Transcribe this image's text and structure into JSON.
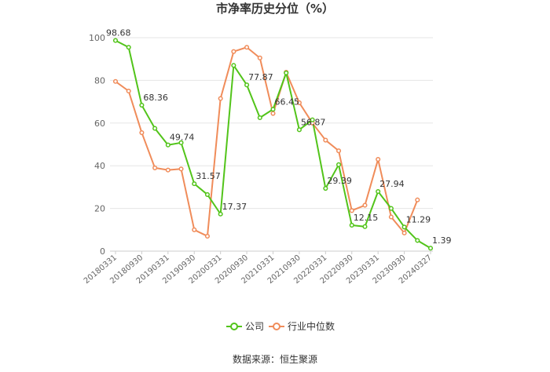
{
  "chart_data": {
    "type": "line",
    "title": "市净率历史分位（%）",
    "ylim": [
      0,
      100
    ],
    "yticks": [
      0,
      20,
      40,
      60,
      80,
      100
    ],
    "grid": true,
    "legend_position": "bottom",
    "x_tick_labels": [
      "20180331",
      "20180930",
      "20190331",
      "20190930",
      "20200331",
      "20200930",
      "20210331",
      "20210930",
      "20220331",
      "20220930",
      "20230331",
      "20230930",
      "20240327"
    ],
    "series": [
      {
        "name": "公司",
        "color": "#52c41a",
        "values": [
          98.68,
          95.5,
          68.36,
          57.5,
          49.74,
          50.8,
          31.57,
          26.5,
          17.37,
          87.0,
          77.87,
          62.5,
          66.45,
          83.5,
          56.87,
          61.5,
          29.39,
          40.5,
          12.15,
          11.5,
          27.94,
          20.0,
          11.29,
          5.0,
          1.39
        ]
      },
      {
        "name": "行业中位数",
        "color": "#f08c5a",
        "values": [
          79.5,
          75.0,
          55.5,
          39.0,
          38.0,
          38.5,
          10.0,
          7.0,
          71.5,
          93.5,
          95.5,
          90.5,
          64.5,
          83.8,
          69.5,
          60.0,
          52.0,
          47.0,
          19.0,
          21.5,
          43.0,
          16.0,
          8.5,
          24.0
        ]
      }
    ],
    "data_labels": [
      {
        "series": 0,
        "index": 0,
        "text": "98.68"
      },
      {
        "series": 0,
        "index": 2,
        "text": "68.36"
      },
      {
        "series": 0,
        "index": 4,
        "text": "49.74"
      },
      {
        "series": 0,
        "index": 6,
        "text": "31.57"
      },
      {
        "series": 0,
        "index": 8,
        "text": "17.37"
      },
      {
        "series": 0,
        "index": 10,
        "text": "77.87"
      },
      {
        "series": 0,
        "index": 12,
        "text": "66.45"
      },
      {
        "series": 0,
        "index": 14,
        "text": "56.87"
      },
      {
        "series": 0,
        "index": 16,
        "text": "29.39"
      },
      {
        "series": 0,
        "index": 18,
        "text": "12.15"
      },
      {
        "series": 0,
        "index": 20,
        "text": "27.94"
      },
      {
        "series": 0,
        "index": 22,
        "text": "11.29"
      },
      {
        "series": 0,
        "index": 24,
        "text": "1.39"
      }
    ]
  },
  "source": "数据来源：恒生聚源"
}
